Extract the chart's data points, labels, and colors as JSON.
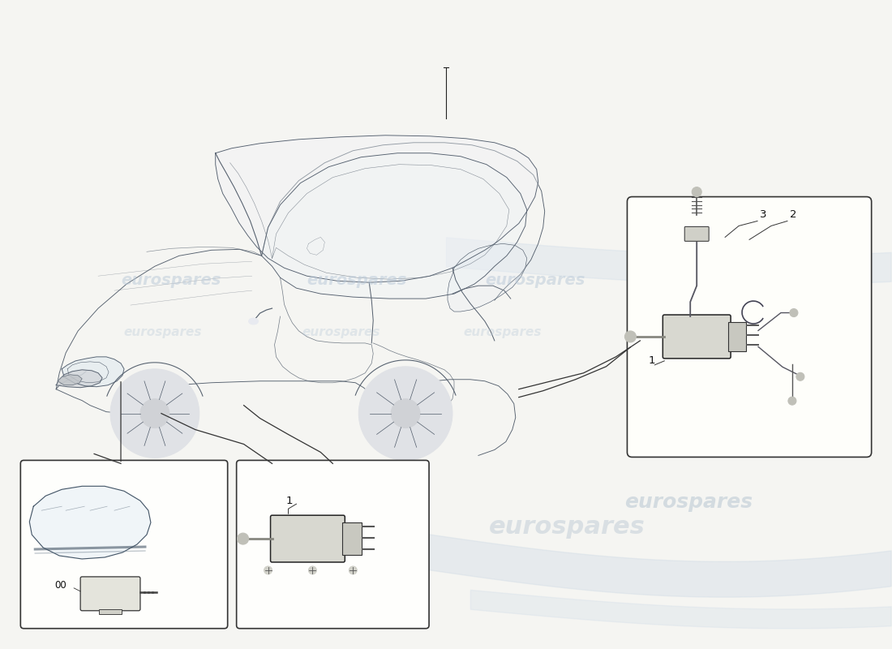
{
  "bg_color": "#f5f5f2",
  "line_color": "#555566",
  "line_color_dark": "#333344",
  "box_edge_color": "#333333",
  "box_face_color": "#fefefe",
  "watermark_text": "eurospares",
  "watermark_color": "#b8c8d8",
  "watermark_alpha": 0.55,
  "part_label_color": "#111111",
  "swoosh_color": "#c8d5e2",
  "ref_line_color": "#222222"
}
